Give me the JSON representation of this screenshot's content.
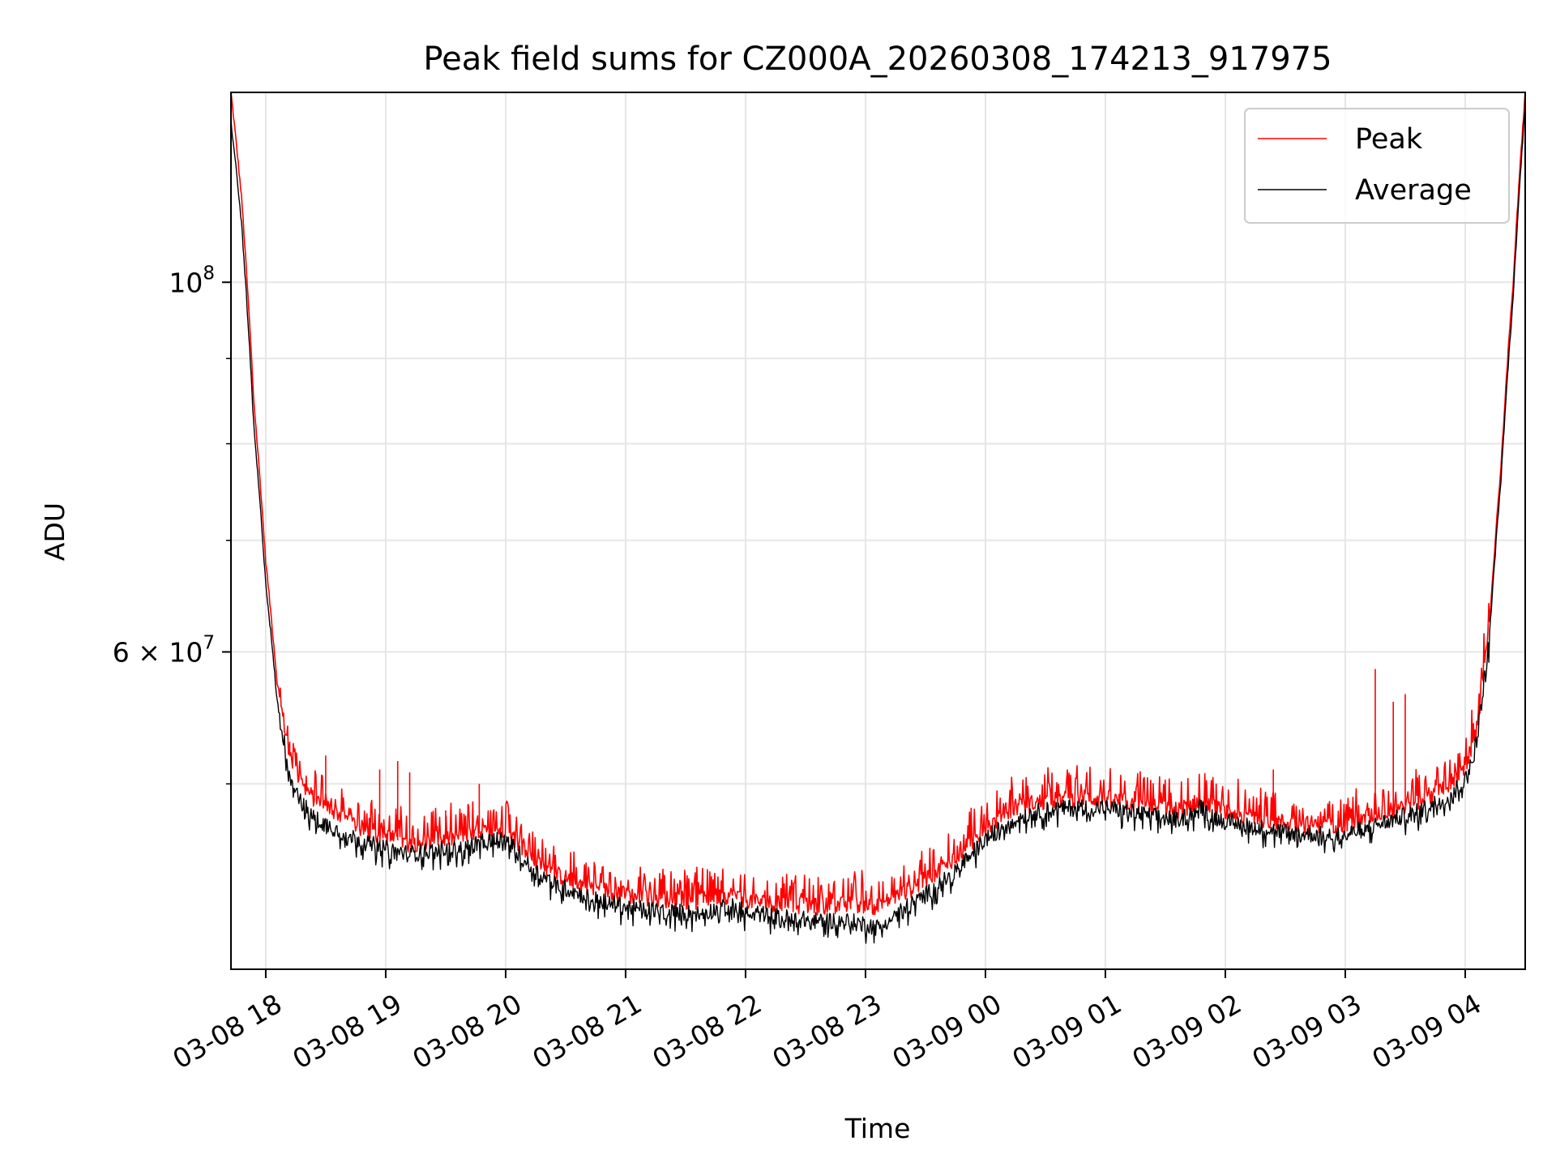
{
  "chart_data": {
    "type": "line",
    "title": "Peak field sums for CZ000A_20260308_174213_917975",
    "xlabel": "Time",
    "ylabel": "ADU",
    "yscale": "log",
    "grid": true,
    "legend_position": "top-right",
    "x_range_hours": [
      17.71,
      28.5
    ],
    "ylim": [
      38700000,
      130000000
    ],
    "x_ticks": [
      {
        "hour": 18,
        "label": "03-08 18"
      },
      {
        "hour": 19,
        "label": "03-08 19"
      },
      {
        "hour": 20,
        "label": "03-08 20"
      },
      {
        "hour": 21,
        "label": "03-08 21"
      },
      {
        "hour": 22,
        "label": "03-08 22"
      },
      {
        "hour": 23,
        "label": "03-08 23"
      },
      {
        "hour": 24,
        "label": "03-09 00"
      },
      {
        "hour": 25,
        "label": "03-09 01"
      },
      {
        "hour": 26,
        "label": "03-09 02"
      },
      {
        "hour": 27,
        "label": "03-09 03"
      },
      {
        "hour": 28,
        "label": "03-09 04"
      }
    ],
    "y_major_ticks": [
      {
        "value": 100000000,
        "base": "10",
        "exp": "8"
      },
      {
        "value": 60000000,
        "base": "6 × 10",
        "exp": "7"
      }
    ],
    "y_minor_ticks": [
      50000000,
      70000000,
      80000000,
      90000000
    ],
    "series": [
      {
        "name": "Peak",
        "color": "#ff0000",
        "x": [
          17.71,
          17.8,
          17.9,
          18.0,
          18.1,
          18.2,
          18.3,
          18.4,
          18.6,
          18.8,
          19.0,
          19.2,
          19.4,
          19.6,
          19.8,
          20.0,
          20.2,
          20.4,
          20.6,
          20.8,
          21.0,
          21.2,
          21.4,
          21.6,
          21.8,
          21.9,
          22.0,
          22.2,
          22.4,
          22.6,
          22.8,
          23.0,
          23.1,
          23.2,
          23.4,
          23.6,
          23.8,
          24.0,
          24.2,
          24.4,
          24.6,
          24.8,
          25.0,
          25.2,
          25.4,
          25.6,
          25.7,
          25.8,
          25.9,
          26.0,
          26.2,
          26.4,
          26.6,
          26.8,
          27.0,
          27.2,
          27.4,
          27.6,
          27.8,
          28.0,
          28.1,
          28.2,
          28.3,
          28.4,
          28.5
        ],
        "y": [
          130000000,
          112000000,
          85000000,
          68000000,
          57000000,
          52000000,
          50000000,
          49000000,
          48000000,
          47000000,
          46500000,
          46000000,
          46300000,
          46400000,
          46700000,
          47000000,
          45200000,
          44200000,
          43600000,
          43200000,
          42900000,
          42700000,
          42600000,
          42500000,
          42800000,
          42900000,
          42600000,
          42400000,
          42300000,
          42200000,
          42300000,
          42300000,
          42200000,
          42600000,
          43300000,
          44300000,
          45500000,
          47000000,
          48200000,
          48700000,
          48900000,
          49000000,
          49000000,
          48700000,
          48400000,
          48200000,
          48500000,
          48900000,
          48400000,
          48100000,
          47800000,
          47500000,
          47300000,
          47300000,
          47200000,
          47800000,
          48300000,
          48800000,
          49600000,
          51000000,
          54000000,
          62000000,
          78000000,
          100000000,
          130000000
        ],
        "spikes": [
          {
            "x": 18.2,
            "y": 53000000
          },
          {
            "x": 18.5,
            "y": 52000000
          },
          {
            "x": 18.95,
            "y": 51000000
          },
          {
            "x": 19.1,
            "y": 51600000
          },
          {
            "x": 19.2,
            "y": 50800000
          },
          {
            "x": 19.5,
            "y": 48200000
          },
          {
            "x": 19.78,
            "y": 50000000
          },
          {
            "x": 26.4,
            "y": 51000000
          },
          {
            "x": 27.25,
            "y": 58600000
          },
          {
            "x": 27.4,
            "y": 56000000
          },
          {
            "x": 27.5,
            "y": 56600000
          }
        ]
      },
      {
        "name": "Average",
        "color": "#000000",
        "x": [
          17.71,
          17.8,
          17.9,
          18.0,
          18.1,
          18.2,
          18.3,
          18.4,
          18.6,
          18.8,
          19.0,
          19.2,
          19.4,
          19.6,
          19.8,
          20.0,
          20.2,
          20.4,
          20.6,
          20.8,
          21.0,
          21.2,
          21.4,
          21.6,
          21.8,
          21.9,
          22.0,
          22.2,
          22.4,
          22.6,
          22.8,
          23.0,
          23.1,
          23.2,
          23.4,
          23.6,
          23.8,
          24.0,
          24.2,
          24.4,
          24.6,
          24.8,
          25.0,
          25.2,
          25.4,
          25.6,
          25.7,
          25.8,
          25.9,
          26.0,
          26.2,
          26.4,
          26.6,
          26.8,
          27.0,
          27.2,
          27.4,
          27.6,
          27.8,
          28.0,
          28.1,
          28.2,
          28.3,
          28.4,
          28.5
        ],
        "y": [
          125000000,
          108000000,
          82000000,
          66000000,
          55500000,
          50800000,
          48700000,
          47700000,
          46900000,
          46200000,
          45700000,
          45400000,
          45600000,
          45700000,
          46100000,
          46400000,
          44600000,
          43600000,
          43000000,
          42500000,
          42200000,
          42000000,
          41900000,
          41800000,
          42100000,
          42200000,
          41900000,
          41700000,
          41500000,
          41400000,
          41400000,
          41200000,
          41000000,
          41600000,
          42400000,
          43400000,
          44700000,
          46300000,
          47500000,
          48100000,
          48300000,
          48400000,
          48400000,
          48100000,
          47800000,
          47600000,
          47900000,
          48500000,
          47800000,
          47500000,
          47200000,
          46900000,
          46700000,
          46600000,
          46600000,
          47100000,
          47600000,
          48100000,
          48900000,
          50200000,
          53300000,
          61000000,
          76500000,
          98000000,
          128000000
        ]
      }
    ]
  }
}
